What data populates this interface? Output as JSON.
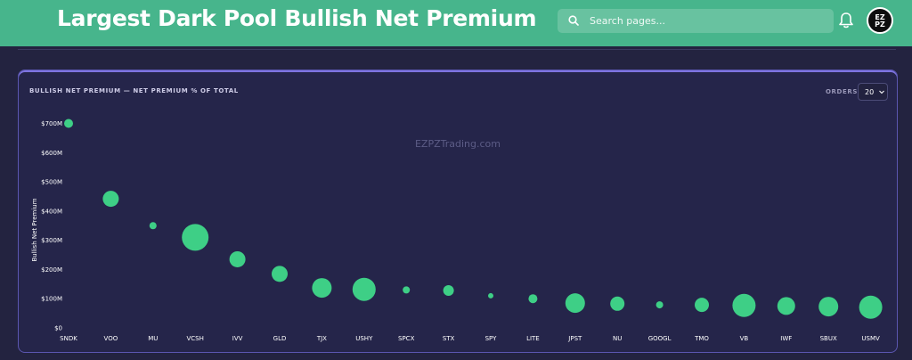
{
  "header": {
    "title": "Largest Dark Pool Bullish Net Premium",
    "search_placeholder": "Search pages...",
    "avatar_text_line1": "EZ",
    "avatar_text_line2": "PZ",
    "colors": {
      "header_bg": "#47b58c",
      "page_bg": "#232340"
    }
  },
  "card": {
    "title": "BULLISH NET PREMIUM — NET PREMIUM % OF TOTAL",
    "orders_label": "ORDERS",
    "orders_value": "20",
    "watermark": "EZPZTrading.com"
  },
  "chart_data": {
    "type": "scatter",
    "ylabel": "Bullish Net Premium",
    "xlabel": "",
    "ylim": [
      0,
      700
    ],
    "yticks": [
      {
        "value": 700,
        "label": "$700M"
      },
      {
        "value": 600,
        "label": "$600M"
      },
      {
        "value": 500,
        "label": "$500M"
      },
      {
        "value": 400,
        "label": "$400M"
      },
      {
        "value": 300,
        "label": "$300M"
      },
      {
        "value": 200,
        "label": "$200M"
      },
      {
        "value": 100,
        "label": "$100M"
      },
      {
        "value": 0,
        "label": "$0"
      }
    ],
    "grid": false,
    "color": "#3ecf86",
    "categories": [
      "SNDK",
      "VOO",
      "MU",
      "VCSH",
      "IVV",
      "GLD",
      "TJX",
      "USHY",
      "SPCX",
      "STX",
      "SPY",
      "LITE",
      "JPST",
      "NU",
      "GOOGL",
      "TMO",
      "VB",
      "IWF",
      "SBUX",
      "USMV"
    ],
    "values": [
      700,
      442,
      350,
      310,
      235,
      185,
      137,
      132,
      130,
      128,
      110,
      100,
      85,
      83,
      79,
      79,
      77,
      75,
      73,
      71
    ],
    "bubble_size": [
      5,
      9,
      4,
      15,
      9,
      9,
      11,
      13,
      4,
      6,
      3,
      5,
      11,
      8,
      4,
      8,
      13,
      10,
      11,
      13
    ]
  }
}
